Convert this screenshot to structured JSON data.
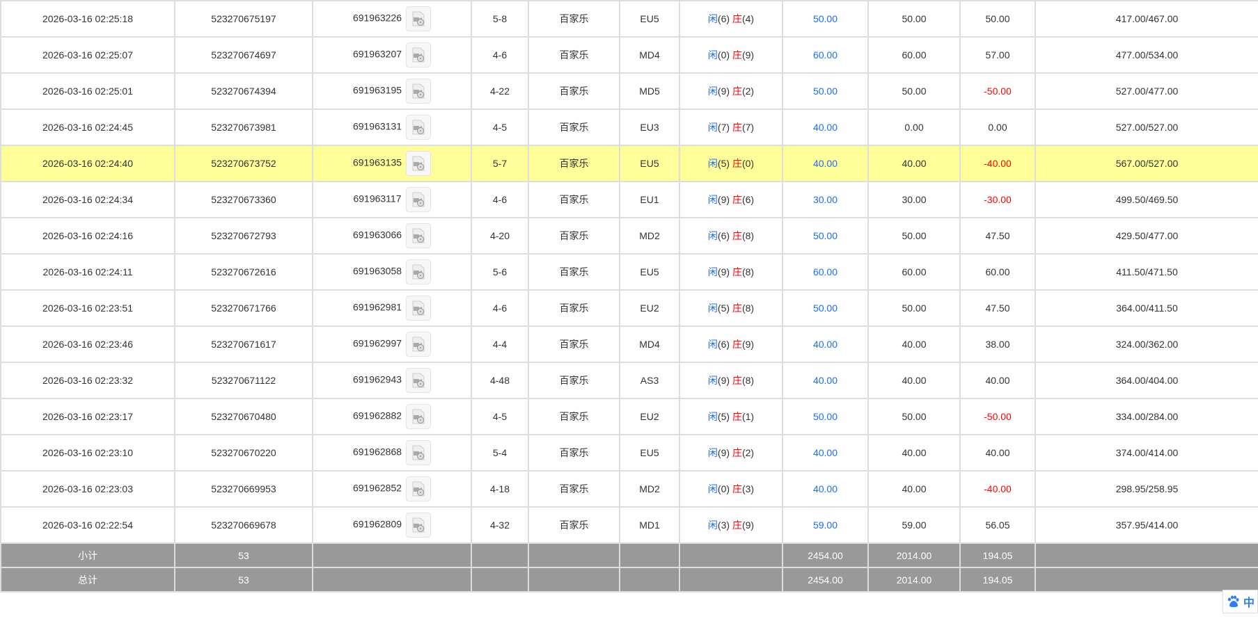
{
  "rows": [
    [
      "2026-03-16 02:25:18",
      "523270675197",
      "691963226",
      "5-8",
      "百家乐",
      "EU5",
      "6",
      "4",
      "50.00",
      "50.00",
      "50.00",
      "417.00/467.00"
    ],
    [
      "2026-03-16 02:25:07",
      "523270674697",
      "691963207",
      "4-6",
      "百家乐",
      "MD4",
      "0",
      "9",
      "60.00",
      "60.00",
      "57.00",
      "477.00/534.00"
    ],
    [
      "2026-03-16 02:25:01",
      "523270674394",
      "691963195",
      "4-22",
      "百家乐",
      "MD5",
      "9",
      "2",
      "50.00",
      "50.00",
      "-50.00",
      "527.00/477.00"
    ],
    [
      "2026-03-16 02:24:45",
      "523270673981",
      "691963131",
      "4-5",
      "百家乐",
      "EU3",
      "7",
      "7",
      "40.00",
      "0.00",
      "0.00",
      "527.00/527.00"
    ],
    [
      "2026-03-16 02:24:40",
      "523270673752",
      "691963135",
      "5-7",
      "百家乐",
      "EU5",
      "5",
      "0",
      "40.00",
      "40.00",
      "-40.00",
      "567.00/527.00"
    ],
    [
      "2026-03-16 02:24:34",
      "523270673360",
      "691963117",
      "4-6",
      "百家乐",
      "EU1",
      "9",
      "6",
      "30.00",
      "30.00",
      "-30.00",
      "499.50/469.50"
    ],
    [
      "2026-03-16 02:24:16",
      "523270672793",
      "691963066",
      "4-20",
      "百家乐",
      "MD2",
      "6",
      "8",
      "50.00",
      "50.00",
      "47.50",
      "429.50/477.00"
    ],
    [
      "2026-03-16 02:24:11",
      "523270672616",
      "691963058",
      "5-6",
      "百家乐",
      "EU5",
      "9",
      "8",
      "60.00",
      "60.00",
      "60.00",
      "411.50/471.50"
    ],
    [
      "2026-03-16 02:23:51",
      "523270671766",
      "691962981",
      "4-6",
      "百家乐",
      "EU2",
      "5",
      "8",
      "50.00",
      "50.00",
      "47.50",
      "364.00/411.50"
    ],
    [
      "2026-03-16 02:23:46",
      "523270671617",
      "691962997",
      "4-4",
      "百家乐",
      "MD4",
      "6",
      "9",
      "40.00",
      "40.00",
      "38.00",
      "324.00/362.00"
    ],
    [
      "2026-03-16 02:23:32",
      "523270671122",
      "691962943",
      "4-48",
      "百家乐",
      "AS3",
      "9",
      "8",
      "40.00",
      "40.00",
      "40.00",
      "364.00/404.00"
    ],
    [
      "2026-03-16 02:23:17",
      "523270670480",
      "691962882",
      "4-5",
      "百家乐",
      "EU2",
      "5",
      "1",
      "50.00",
      "50.00",
      "-50.00",
      "334.00/284.00"
    ],
    [
      "2026-03-16 02:23:10",
      "523270670220",
      "691962868",
      "5-4",
      "百家乐",
      "EU5",
      "9",
      "2",
      "40.00",
      "40.00",
      "40.00",
      "374.00/414.00"
    ],
    [
      "2026-03-16 02:23:03",
      "523270669953",
      "691962852",
      "4-18",
      "百家乐",
      "MD2",
      "0",
      "3",
      "40.00",
      "40.00",
      "-40.00",
      "298.95/258.95"
    ],
    [
      "2026-03-16 02:22:54",
      "523270669678",
      "691962809",
      "4-32",
      "百家乐",
      "MD1",
      "3",
      "9",
      "59.00",
      "59.00",
      "56.05",
      "357.95/414.00"
    ]
  ],
  "highlighted_row": 4,
  "player_label": "闲",
  "banker_label": "庄",
  "footer": [
    {
      "label": "小计",
      "count": "53",
      "bet": "2454.00",
      "valid": "2014.00",
      "winloss": "194.05"
    },
    {
      "label": "总计",
      "count": "53",
      "bet": "2454.00",
      "valid": "2014.00",
      "winloss": "194.05"
    }
  ],
  "widget": {
    "icon": "baidu-paw-icon",
    "label": "中"
  },
  "colors": {
    "blue": "#1a6dff",
    "red": "#ff0000",
    "highlight": "#ffff99",
    "footer": "#999999"
  }
}
